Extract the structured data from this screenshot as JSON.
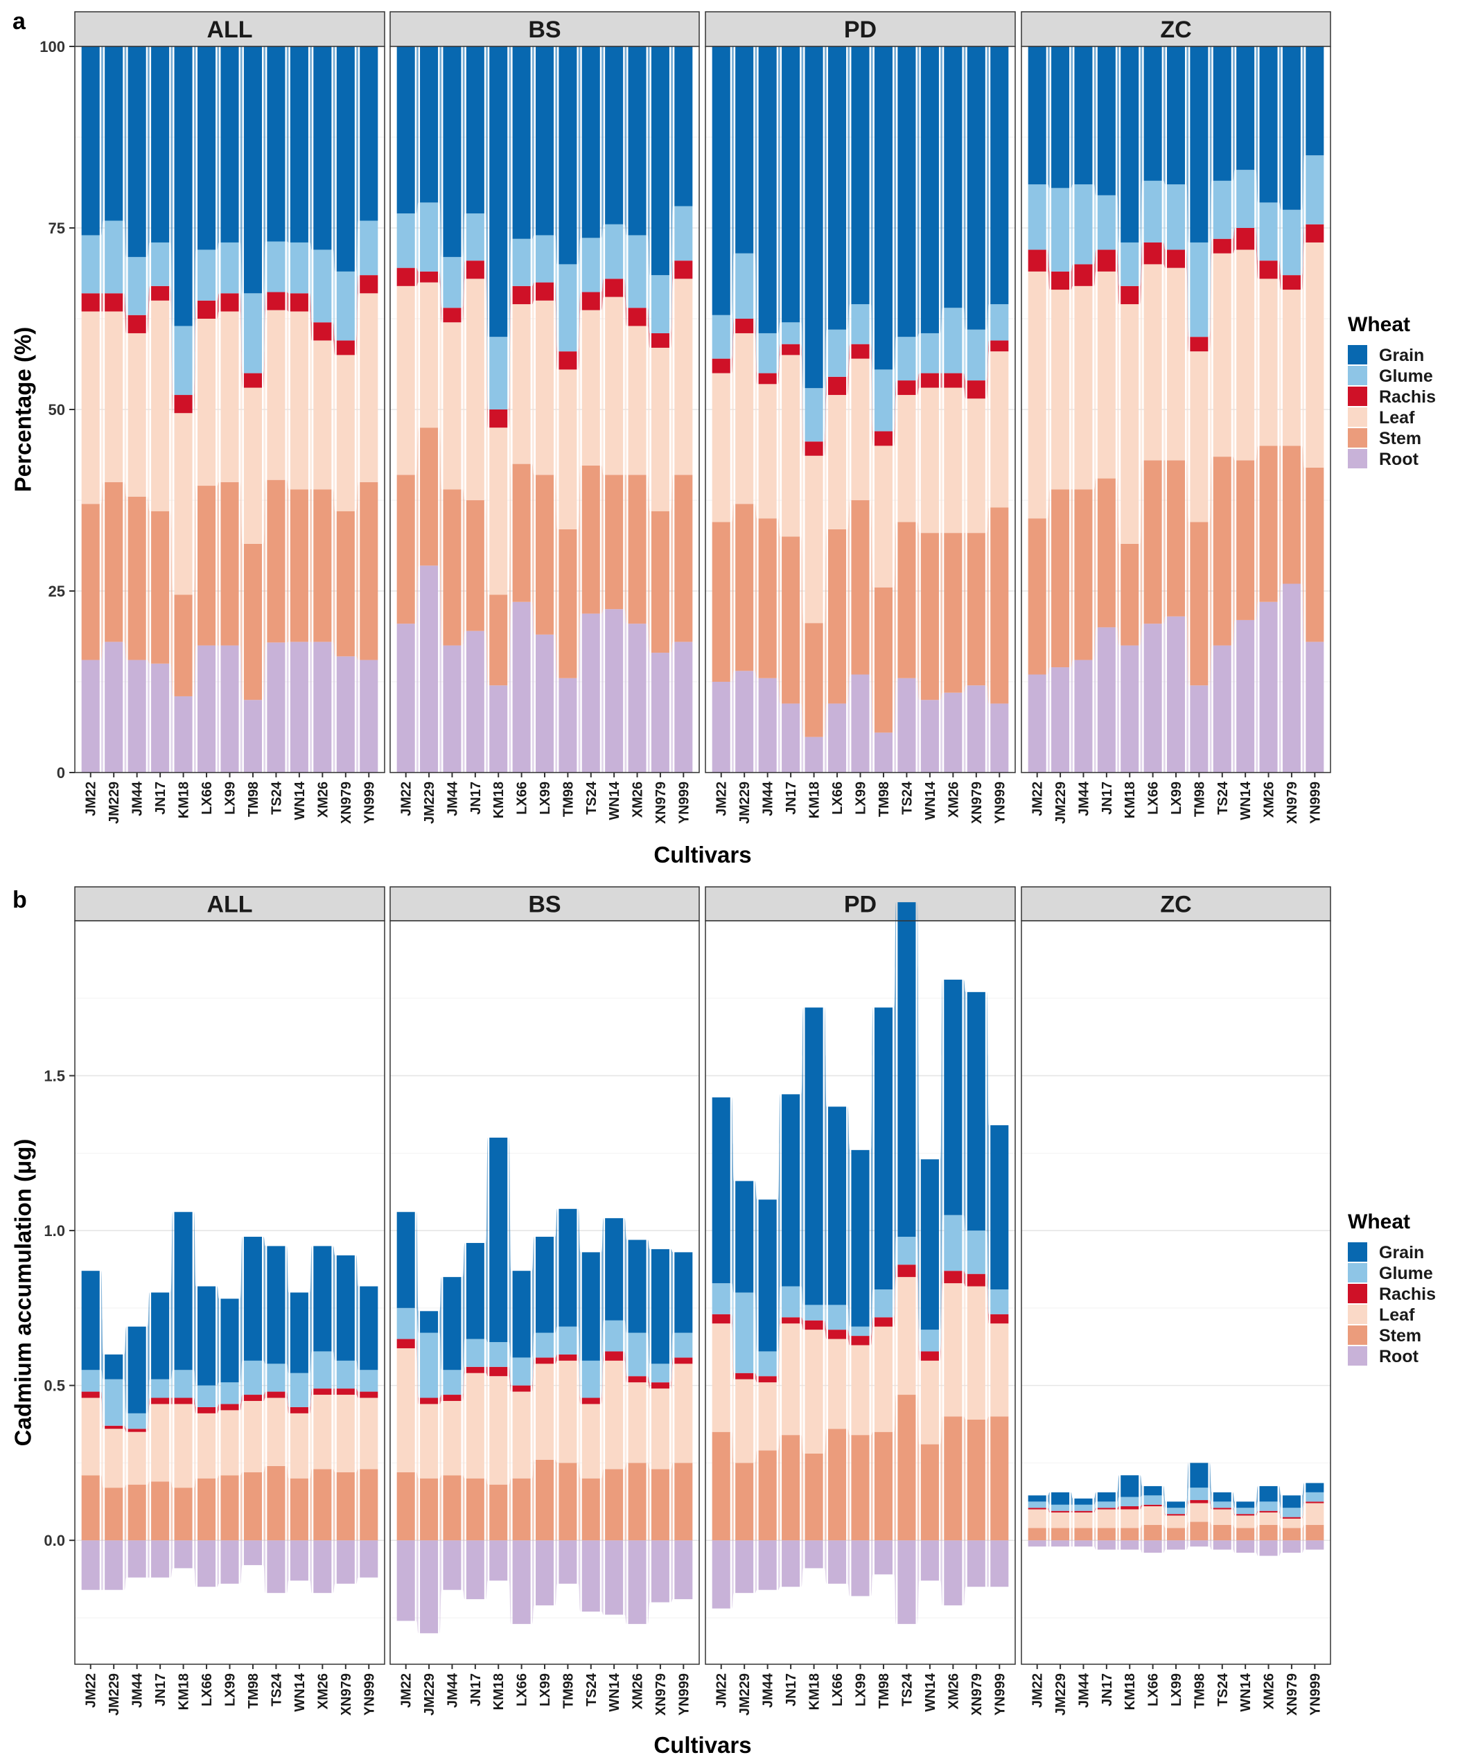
{
  "chart_data": [
    {
      "id": "a",
      "panel_label": "a",
      "type": "stacked-bar-alluvial",
      "ylabel": "Percentage (%)",
      "xlabel": "Cultivars",
      "ylim": [
        0,
        100
      ],
      "yticks": [
        0,
        25,
        50,
        75,
        100
      ],
      "ytick_labels": [
        "0",
        "25",
        "50",
        "75",
        "100"
      ],
      "legend_title": "Wheat",
      "facets": [
        "ALL",
        "BS",
        "PD",
        "ZC"
      ],
      "categories": [
        "JM22",
        "JM229",
        "JM44",
        "JN17",
        "KM18",
        "LX66",
        "LX99",
        "TM98",
        "TS24",
        "WN14",
        "XM26",
        "XN979",
        "YN999"
      ],
      "series": [
        {
          "name": "Grain",
          "color": "#0868b0",
          "values": {
            "ALL": [
              26,
              24,
              29,
              27,
              38.5,
              28,
              27,
              34,
              27,
              27,
              28,
              31,
              24
            ],
            "BS": [
              23,
              21.5,
              29,
              23,
              40,
              26.5,
              26,
              30,
              26.5,
              24.5,
              26,
              31.5,
              22
            ],
            "PD": [
              37,
              28.5,
              39.5,
              38,
              48,
              39,
              35.5,
              44.5,
              40,
              39.5,
              36,
              39,
              35.5
            ],
            "ZC": [
              19,
              19.5,
              19,
              20.5,
              27,
              18.5,
              19,
              27,
              18.5,
              17,
              21.5,
              22.5,
              15
            ]
          }
        },
        {
          "name": "Glume",
          "color": "#8ec5e6",
          "values": {
            "ALL": [
              8,
              10,
              8,
              6,
              9.5,
              7,
              7,
              11,
              7,
              7,
              10,
              9.5,
              7.5
            ],
            "BS": [
              7.5,
              9.5,
              7,
              6.5,
              10,
              6.5,
              6.5,
              12,
              7.5,
              7.5,
              10,
              8,
              7.5
            ],
            "PD": [
              6,
              9,
              5.5,
              3,
              7.5,
              6.5,
              5.5,
              8.5,
              6,
              5.5,
              9,
              7,
              5
            ],
            "ZC": [
              9,
              11.5,
              11,
              7.5,
              6,
              8.5,
              9,
              13,
              8,
              8,
              8,
              9,
              9.5
            ]
          }
        },
        {
          "name": "Rachis",
          "color": "#cf1127",
          "values": {
            "ALL": [
              2.5,
              2.5,
              2.5,
              2,
              2.5,
              2.5,
              2.5,
              2,
              2.5,
              2.5,
              2.5,
              2,
              2.5
            ],
            "BS": [
              2.5,
              1.5,
              2,
              2.5,
              2.5,
              2.5,
              2.5,
              2.5,
              2.5,
              2.5,
              2.5,
              2,
              2.5
            ],
            "PD": [
              2,
              2,
              1.5,
              1.5,
              2,
              2.5,
              2,
              2,
              2,
              2,
              2,
              2.5,
              1.5
            ],
            "ZC": [
              3,
              2.5,
              3,
              3,
              2.5,
              3,
              2.5,
              2,
              2,
              3,
              2.5,
              2,
              2.5
            ]
          }
        },
        {
          "name": "Leaf",
          "color": "#fad9c7",
          "values": {
            "ALL": [
              26.5,
              23.5,
              22.5,
              29,
              25,
              23,
              23.5,
              21.5,
              23.5,
              24.5,
              20.5,
              21.5,
              26
            ],
            "BS": [
              26,
              20,
              23,
              30.5,
              23,
              22,
              24,
              22,
              21.5,
              24.5,
              20.5,
              22.5,
              27
            ],
            "PD": [
              20.5,
              23.5,
              18.5,
              25,
              23.5,
              18.5,
              19.5,
              19.5,
              17.5,
              20,
              20,
              18.5,
              21.5
            ],
            "ZC": [
              34,
              27.5,
              28,
              28.5,
              33,
              27,
              26.5,
              23.5,
              28,
              29,
              23,
              21.5,
              31
            ]
          }
        },
        {
          "name": "Stem",
          "color": "#eb9c7c",
          "values": {
            "ALL": [
              21.5,
              22,
              22.5,
              21,
              14,
              22,
              22.5,
              21.5,
              22.5,
              21,
              21,
              20,
              24.5
            ],
            "BS": [
              20.5,
              19,
              21.5,
              18,
              12.5,
              19,
              22,
              20.5,
              20.5,
              18.5,
              20.5,
              19.5,
              23
            ],
            "PD": [
              22,
              23,
              22,
              23,
              16,
              24,
              24,
              20,
              21.5,
              23,
              22,
              21,
              27
            ],
            "ZC": [
              21.5,
              24.5,
              23.5,
              20.5,
              14,
              22.5,
              21.5,
              22.5,
              26,
              22,
              21.5,
              19,
              24
            ]
          }
        },
        {
          "name": "Root",
          "color": "#c8b2d8",
          "values": {
            "ALL": [
              15.5,
              18,
              15.5,
              15,
              10.5,
              17.5,
              17.5,
              10,
              18,
              18,
              18,
              16,
              15.5
            ],
            "BS": [
              20.5,
              28.5,
              17.5,
              19.5,
              12,
              23.5,
              19,
              13,
              22,
              22.5,
              20.5,
              16.5,
              18
            ],
            "PD": [
              12.5,
              14,
              13,
              9.5,
              5,
              9.5,
              13.5,
              5.5,
              13,
              10,
              11,
              12,
              9.5
            ],
            "ZC": [
              13.5,
              14.5,
              15.5,
              20,
              17.5,
              20.5,
              21.5,
              12,
              17.5,
              21,
              23.5,
              26,
              18
            ]
          }
        }
      ]
    },
    {
      "id": "b",
      "panel_label": "b",
      "type": "stacked-bar-alluvial",
      "ylabel": "Cadmium accumulation (μg)",
      "xlabel": "Cultivars",
      "ylim": [
        -0.4,
        2.0
      ],
      "yticks": [
        0.0,
        0.5,
        1.0,
        1.5
      ],
      "ytick_labels": [
        "0.0",
        "0.5",
        "1.0",
        "1.5"
      ],
      "legend_title": "Wheat",
      "facets": [
        "ALL",
        "BS",
        "PD",
        "ZC"
      ],
      "categories": [
        "JM22",
        "JM229",
        "JM44",
        "JN17",
        "KM18",
        "LX66",
        "LX99",
        "TM98",
        "TS24",
        "WN14",
        "XM26",
        "XN979",
        "YN999"
      ],
      "root_below_zero": true,
      "series": [
        {
          "name": "Grain",
          "color": "#0868b0",
          "values": {
            "ALL": [
              0.32,
              0.08,
              0.28,
              0.28,
              0.51,
              0.32,
              0.27,
              0.4,
              0.38,
              0.26,
              0.34,
              0.34,
              0.27
            ],
            "BS": [
              0.31,
              0.07,
              0.3,
              0.31,
              0.66,
              0.28,
              0.31,
              0.38,
              0.35,
              0.33,
              0.3,
              0.37,
              0.26
            ],
            "PD": [
              0.6,
              0.36,
              0.49,
              0.62,
              0.96,
              0.64,
              0.57,
              0.91,
              1.08,
              0.55,
              0.76,
              0.77,
              0.53
            ],
            "ZC": [
              0.02,
              0.04,
              0.02,
              0.03,
              0.07,
              0.03,
              0.02,
              0.08,
              0.03,
              0.02,
              0.05,
              0.04,
              0.03
            ]
          }
        },
        {
          "name": "Glume",
          "color": "#8ec5e6",
          "values": {
            "ALL": [
              0.07,
              0.15,
              0.05,
              0.06,
              0.09,
              0.07,
              0.07,
              0.11,
              0.09,
              0.11,
              0.12,
              0.09,
              0.07
            ],
            "BS": [
              0.1,
              0.21,
              0.08,
              0.09,
              0.08,
              0.09,
              0.08,
              0.09,
              0.12,
              0.1,
              0.14,
              0.06,
              0.08
            ],
            "PD": [
              0.1,
              0.26,
              0.08,
              0.1,
              0.05,
              0.08,
              0.03,
              0.09,
              0.09,
              0.07,
              0.18,
              0.14,
              0.08
            ],
            "ZC": [
              0.02,
              0.02,
              0.02,
              0.02,
              0.03,
              0.03,
              0.02,
              0.04,
              0.02,
              0.02,
              0.03,
              0.03,
              0.03
            ]
          }
        },
        {
          "name": "Rachis",
          "color": "#cf1127",
          "values": {
            "ALL": [
              0.02,
              0.01,
              0.01,
              0.02,
              0.02,
              0.02,
              0.02,
              0.02,
              0.02,
              0.02,
              0.02,
              0.02,
              0.02
            ],
            "BS": [
              0.03,
              0.02,
              0.02,
              0.02,
              0.03,
              0.02,
              0.02,
              0.02,
              0.02,
              0.03,
              0.02,
              0.02,
              0.02
            ],
            "PD": [
              0.03,
              0.02,
              0.02,
              0.02,
              0.03,
              0.03,
              0.03,
              0.03,
              0.04,
              0.03,
              0.04,
              0.04,
              0.03
            ],
            "ZC": [
              0.005,
              0.005,
              0.005,
              0.005,
              0.01,
              0.005,
              0.005,
              0.01,
              0.005,
              0.005,
              0.005,
              0.005,
              0.005
            ]
          }
        },
        {
          "name": "Leaf",
          "color": "#fad9c7",
          "values": {
            "ALL": [
              0.25,
              0.19,
              0.17,
              0.25,
              0.27,
              0.21,
              0.21,
              0.23,
              0.22,
              0.21,
              0.24,
              0.25,
              0.23
            ],
            "BS": [
              0.4,
              0.24,
              0.24,
              0.34,
              0.35,
              0.28,
              0.31,
              0.33,
              0.24,
              0.35,
              0.26,
              0.26,
              0.32
            ],
            "PD": [
              0.35,
              0.27,
              0.22,
              0.36,
              0.4,
              0.29,
              0.29,
              0.34,
              0.38,
              0.27,
              0.43,
              0.43,
              0.3
            ],
            "ZC": [
              0.06,
              0.05,
              0.05,
              0.06,
              0.06,
              0.06,
              0.04,
              0.06,
              0.05,
              0.04,
              0.04,
              0.03,
              0.07
            ]
          }
        },
        {
          "name": "Stem",
          "color": "#eb9c7c",
          "values": {
            "ALL": [
              0.21,
              0.17,
              0.18,
              0.19,
              0.17,
              0.2,
              0.21,
              0.22,
              0.24,
              0.2,
              0.23,
              0.22,
              0.23
            ],
            "BS": [
              0.22,
              0.2,
              0.21,
              0.2,
              0.18,
              0.2,
              0.26,
              0.25,
              0.2,
              0.23,
              0.25,
              0.23,
              0.25
            ],
            "PD": [
              0.35,
              0.25,
              0.29,
              0.34,
              0.28,
              0.36,
              0.34,
              0.35,
              0.47,
              0.31,
              0.4,
              0.39,
              0.4
            ],
            "ZC": [
              0.04,
              0.04,
              0.04,
              0.04,
              0.04,
              0.05,
              0.04,
              0.06,
              0.05,
              0.04,
              0.05,
              0.04,
              0.05
            ]
          }
        },
        {
          "name": "Root",
          "color": "#c8b2d8",
          "values": {
            "ALL": [
              0.16,
              0.16,
              0.12,
              0.12,
              0.09,
              0.15,
              0.14,
              0.08,
              0.17,
              0.13,
              0.17,
              0.14,
              0.12
            ],
            "BS": [
              0.26,
              0.3,
              0.16,
              0.19,
              0.13,
              0.27,
              0.21,
              0.14,
              0.23,
              0.24,
              0.27,
              0.2,
              0.19
            ],
            "PD": [
              0.22,
              0.17,
              0.16,
              0.15,
              0.09,
              0.14,
              0.18,
              0.11,
              0.27,
              0.13,
              0.21,
              0.15,
              0.15
            ],
            "ZC": [
              0.02,
              0.02,
              0.02,
              0.03,
              0.03,
              0.04,
              0.03,
              0.02,
              0.03,
              0.04,
              0.05,
              0.04,
              0.03
            ]
          }
        }
      ]
    }
  ]
}
